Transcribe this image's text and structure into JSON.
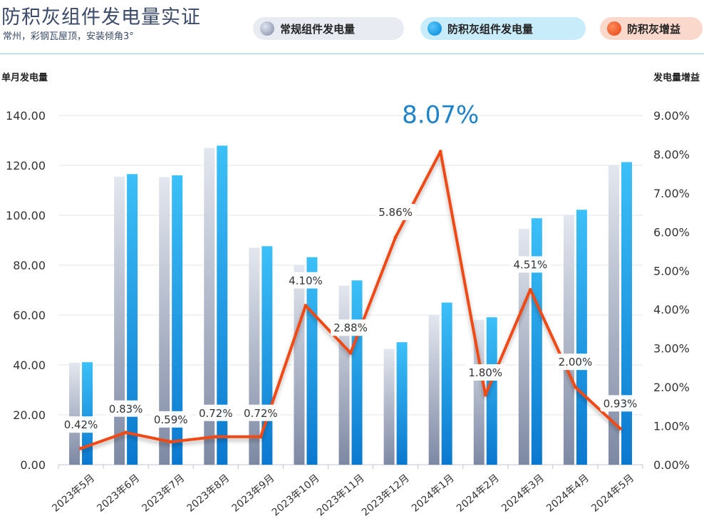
{
  "header": {
    "title": "防积灰组件发电量实证",
    "subtitle": "常州，彩钢瓦屋顶，安装倾角3°"
  },
  "legend": {
    "normal": "常规组件发电量",
    "dustproof": "防积灰组件发电量",
    "gain": "防积灰增益"
  },
  "chart_data": {
    "type": "bar",
    "ylabel": "单月发电量",
    "y2label": "发电量增益",
    "ylim": [
      0,
      140
    ],
    "y2lim": [
      0,
      9
    ],
    "yticks": [
      "0.00",
      "20.00",
      "40.00",
      "60.00",
      "80.00",
      "100.00",
      "120.00",
      "140.00"
    ],
    "y2ticks": [
      "0.00%",
      "1.00%",
      "2.00%",
      "3.00%",
      "4.00%",
      "5.00%",
      "6.00%",
      "7.00%",
      "8.00%",
      "9.00%"
    ],
    "categories": [
      "2023年5月",
      "2023年6月",
      "2023年7月",
      "2023年8月",
      "2023年9月",
      "2023年10月",
      "2023年11月",
      "2023年12月",
      "2024年1月",
      "2024年2月",
      "2024年3月",
      "2024年4月",
      "2024年5月"
    ],
    "series": [
      {
        "name": "常规组件发电量",
        "type": "bar",
        "axis": "left",
        "values": [
          40.9,
          115.5,
          115.3,
          127.0,
          87.0,
          79.9,
          71.8,
          46.4,
          60.1,
          58.1,
          94.6,
          100.2,
          120.2
        ]
      },
      {
        "name": "防积灰组件发电量",
        "type": "bar",
        "axis": "left",
        "values": [
          41.1,
          116.5,
          116.0,
          127.9,
          87.6,
          83.2,
          73.9,
          49.1,
          65.0,
          59.1,
          98.8,
          102.2,
          121.3
        ]
      },
      {
        "name": "防积灰增益",
        "type": "line",
        "axis": "right",
        "values": [
          0.42,
          0.83,
          0.59,
          0.72,
          0.72,
          4.1,
          2.88,
          5.86,
          8.07,
          1.8,
          4.51,
          2.0,
          0.93
        ]
      }
    ],
    "gain_labels": [
      "0.42%",
      "0.83%",
      "0.59%",
      "0.72%",
      "0.72%",
      "4.10%",
      "2.88%",
      "5.86%",
      "8.07%",
      "1.80%",
      "4.51%",
      "2.00%",
      "0.93%"
    ],
    "highlight_index": 8,
    "grid": true,
    "legend_position": "top-right",
    "colors": {
      "normal": "#8a94ad",
      "dustproof": "#0a93e0",
      "gain": "#f04a12",
      "highlight": "#1f83c9"
    }
  }
}
